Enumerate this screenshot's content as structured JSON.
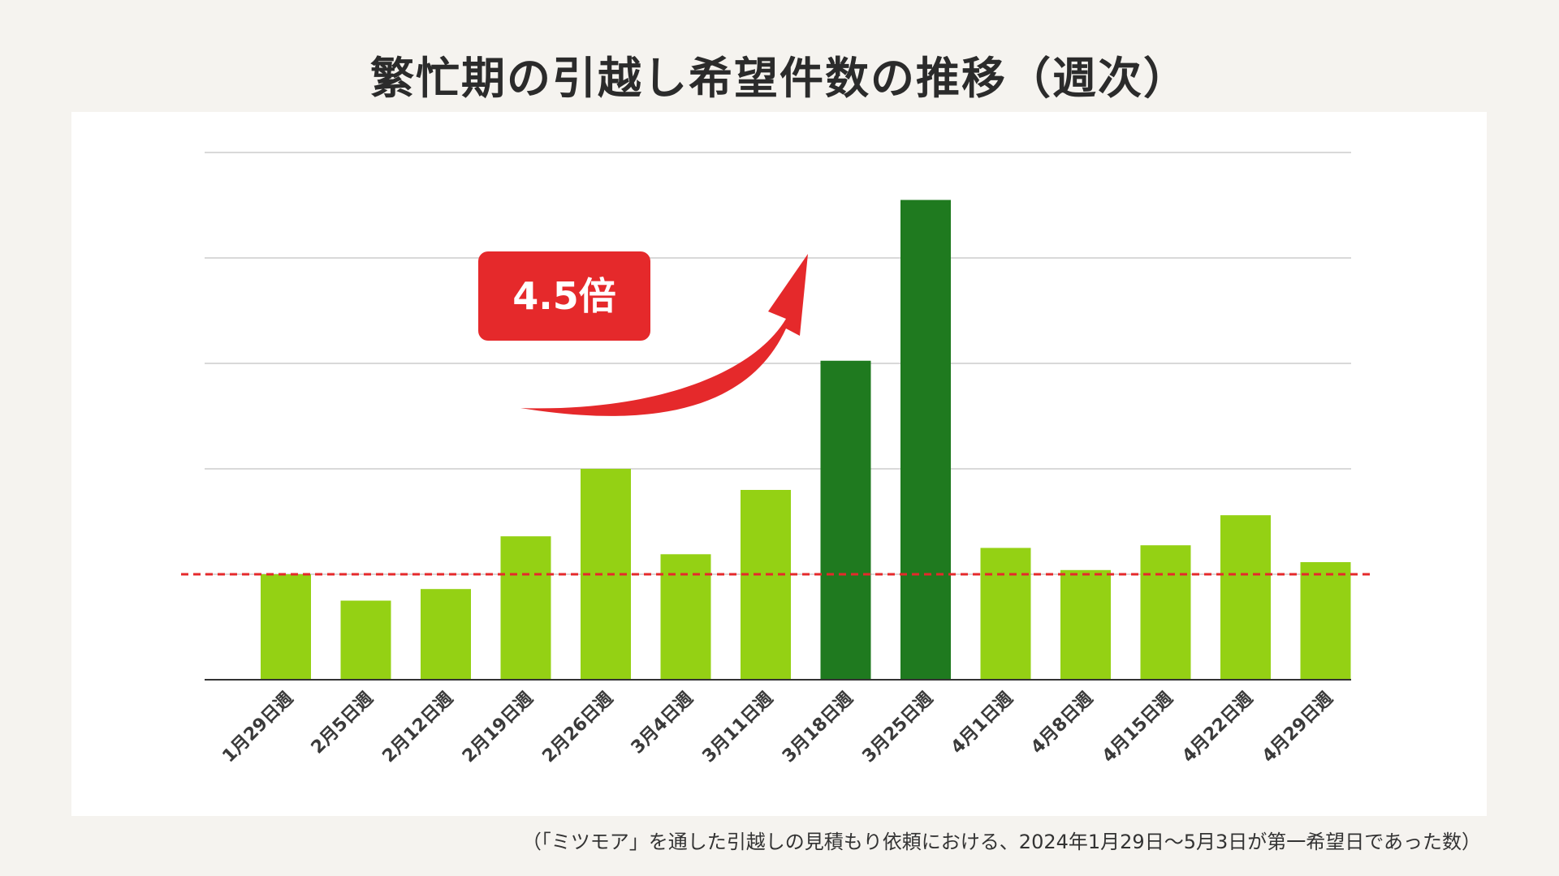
{
  "title": "繁忙期の引越し希望件数の推移（週次）",
  "footnote": "（「ミツモア」を通した引越しの見積もり依頼における、2024年1月29日〜5月3日が第一希望日であった数）",
  "callout": {
    "label": "4.5倍",
    "color": "#e5292b"
  },
  "chart_data": {
    "type": "bar",
    "title": "",
    "xlabel": "",
    "ylabel": "",
    "categories": [
      "1月29日週",
      "2月5日週",
      "2月12日週",
      "2月19日週",
      "2月26日週",
      "3月4日週",
      "3月11日週",
      "3月18日週",
      "3月25日週",
      "4月1日週",
      "4月8日週",
      "4月15日週",
      "4月22日週",
      "4月29日週"
    ],
    "values": [
      2.0,
      1.5,
      1.72,
      2.72,
      4.0,
      2.38,
      3.6,
      6.05,
      9.1,
      2.5,
      2.08,
      2.55,
      3.12,
      2.23
    ],
    "highlight": [
      false,
      false,
      false,
      false,
      false,
      false,
      false,
      true,
      true,
      false,
      false,
      false,
      false,
      false
    ],
    "ylim": [
      0,
      10
    ],
    "y_tick_labels_shown": false,
    "grid": true,
    "average_line": 2.0,
    "colors": {
      "bar": "#94d114",
      "highlight": "#1f7a1f",
      "average_line": "#e5292b",
      "grid": "#d9d9d9",
      "axis": "#333333"
    }
  }
}
